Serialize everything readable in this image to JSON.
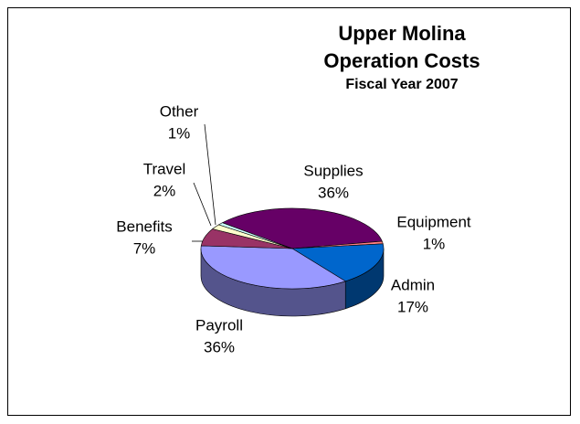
{
  "chart_data": {
    "type": "pie3d",
    "title": "Upper Molina Operation Costs",
    "subtitle": "Fiscal Year 2007",
    "categories": [
      "Supplies",
      "Equipment",
      "Admin",
      "Payroll",
      "Benefits",
      "Travel",
      "Other"
    ],
    "values": [
      36,
      1,
      17,
      36,
      7,
      2,
      1
    ],
    "value_labels": [
      "36%",
      "1%",
      "17%",
      "36%",
      "7%",
      "2%",
      "1%"
    ],
    "colors": [
      "#660066",
      "#ff8080",
      "#0066cc",
      "#9999ff",
      "#993366",
      "#ffffcc",
      "#ccffff"
    ]
  }
}
